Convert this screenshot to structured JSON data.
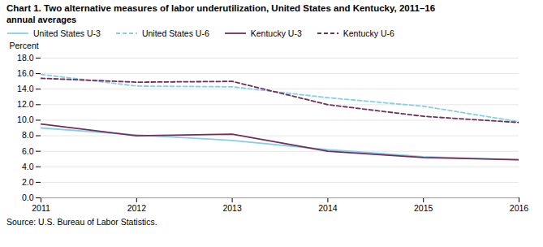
{
  "chart_data": {
    "type": "line",
    "title": "Chart 1. Two alternative measures of labor underutilization, United States and Kentucky, 2011–16",
    "subtitle": "annual averages",
    "ylabel": "Percent",
    "source": "Source: U.S. Bureau of Labor Statistics.",
    "x": [
      2011,
      2012,
      2013,
      2014,
      2015,
      2016
    ],
    "xlim": [
      2011,
      2016
    ],
    "xticks": [
      2011,
      2012,
      2013,
      2014,
      2015,
      2016
    ],
    "ylim": [
      0.0,
      18.0
    ],
    "yticks": [
      {
        "value": 0.0,
        "label": "0.0"
      },
      {
        "value": 2.0,
        "label": "2.0"
      },
      {
        "value": 4.0,
        "label": "4.0"
      },
      {
        "value": 6.0,
        "label": "6.0"
      },
      {
        "value": 8.0,
        "label": "8.0"
      },
      {
        "value": 10.0,
        "label": "10.0"
      },
      {
        "value": 12.0,
        "label": "12.0"
      },
      {
        "value": 14.0,
        "label": "14.0"
      },
      {
        "value": 16.0,
        "label": "16.0"
      },
      {
        "value": 18.0,
        "label": "18.0"
      }
    ],
    "grid": "y",
    "legend": "top",
    "series": [
      {
        "name": "United States  U-3",
        "color": "#87CEEB",
        "line_style": "solid",
        "values": [
          9.0,
          8.1,
          7.4,
          6.2,
          5.3,
          4.9
        ]
      },
      {
        "name": "United States  U-6",
        "color": "#87CEEB",
        "line_style": "dashed",
        "values": [
          15.9,
          14.4,
          14.3,
          12.9,
          11.8,
          9.8
        ]
      },
      {
        "name": "Kentucky  U-3",
        "color": "#722F57",
        "line_style": "solid",
        "values": [
          9.5,
          8.0,
          8.2,
          6.0,
          5.2,
          4.9
        ]
      },
      {
        "name": "Kentucky  U-6",
        "color": "#722F57",
        "line_style": "dashed",
        "values": [
          15.4,
          14.9,
          15.0,
          12.0,
          10.5,
          9.7
        ]
      }
    ]
  }
}
